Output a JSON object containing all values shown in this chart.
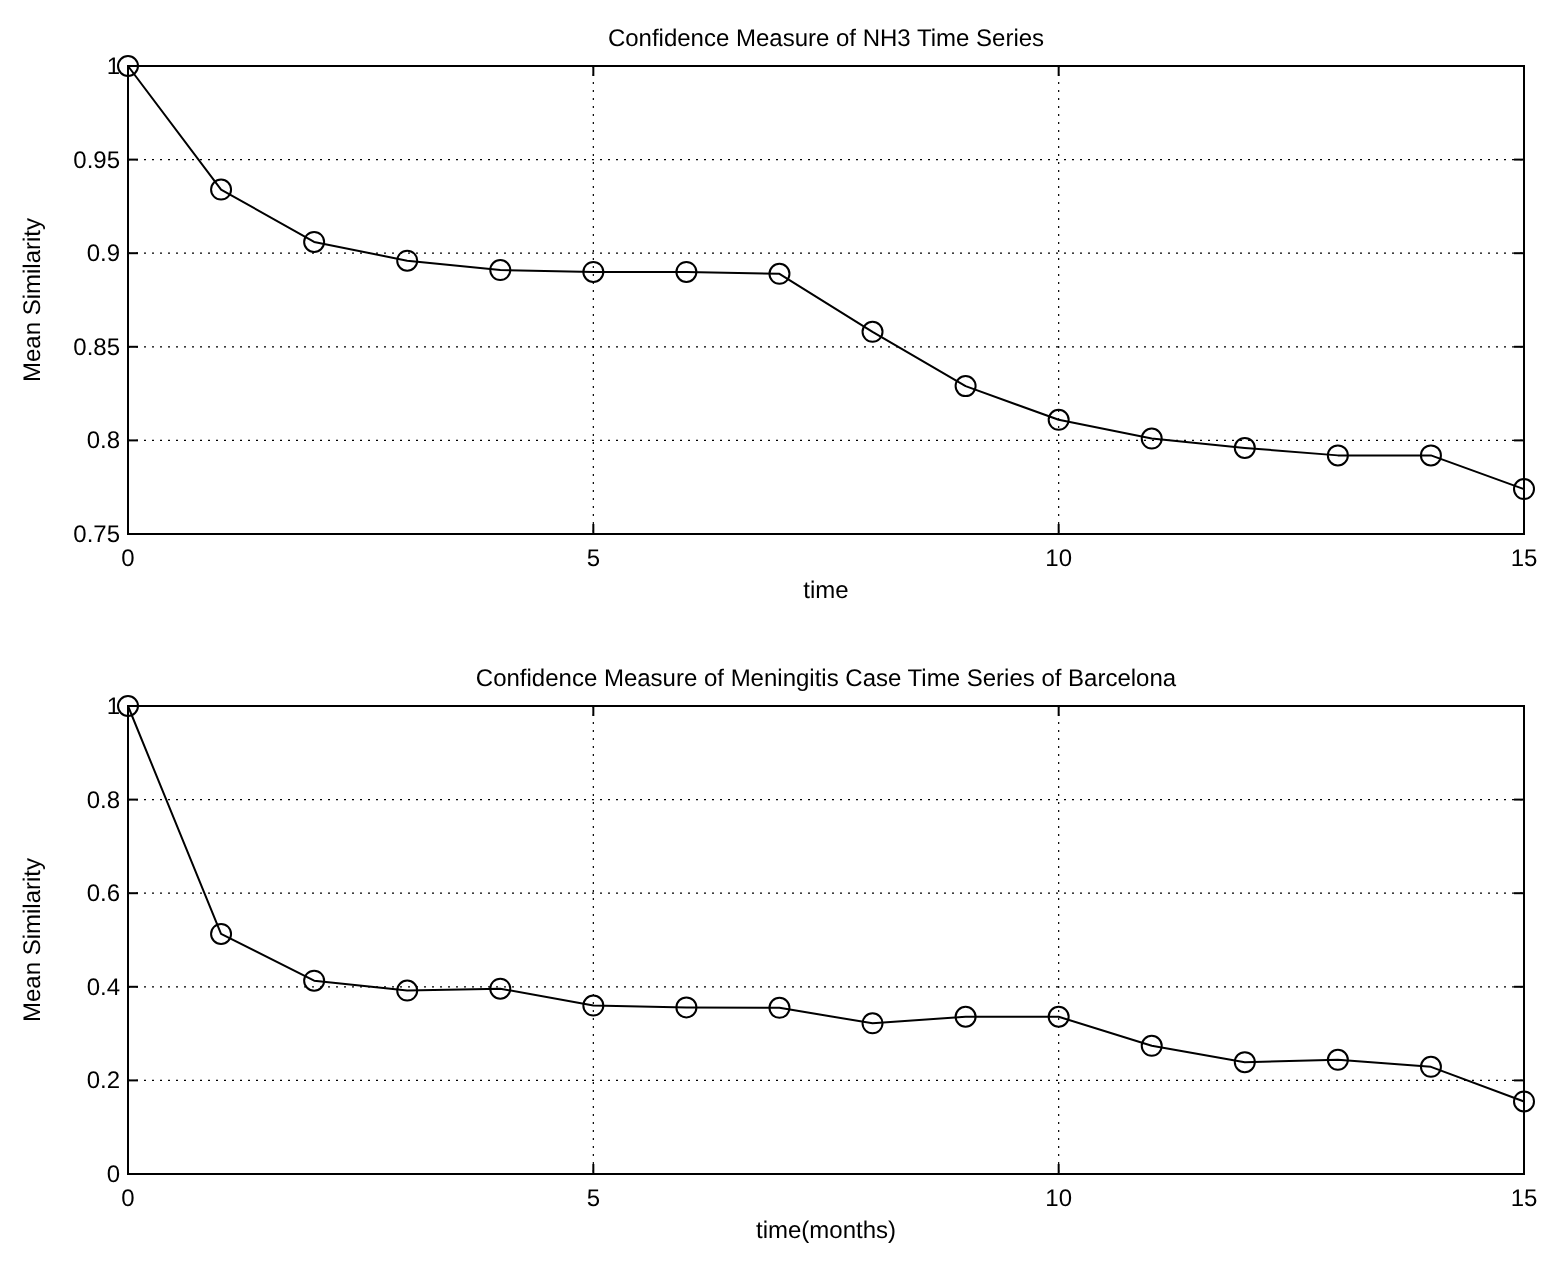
{
  "chart_data": [
    {
      "type": "line",
      "title": "Confidence Measure of NH3 Time Series",
      "xlabel": "time",
      "ylabel": "Mean Similarity",
      "x": [
        0,
        1,
        2,
        3,
        4,
        5,
        6,
        7,
        8,
        9,
        10,
        11,
        12,
        13,
        14,
        15
      ],
      "series": [
        {
          "color": "#000000",
          "values": [
            1.0,
            0.934,
            0.906,
            0.896,
            0.891,
            0.89,
            0.89,
            0.889,
            0.858,
            0.829,
            0.811,
            0.801,
            0.796,
            0.792,
            0.792,
            0.774
          ]
        }
      ],
      "xlim": [
        0,
        15
      ],
      "xticks": [
        0,
        5,
        10,
        15
      ],
      "ylim": [
        0.75,
        1
      ],
      "yticks": [
        0.75,
        0.8,
        0.85,
        0.9,
        0.95,
        1
      ],
      "grid": true,
      "marker": "circle",
      "line_style": "solid"
    },
    {
      "type": "line",
      "title": "Confidence Measure of Meningitis Case Time Series of Barcelona",
      "xlabel": "time(months)",
      "ylabel": "Mean Similarity",
      "x": [
        0,
        1,
        2,
        3,
        4,
        5,
        6,
        7,
        8,
        9,
        10,
        11,
        12,
        13,
        14,
        15
      ],
      "series": [
        {
          "color": "#000000",
          "values": [
            1.0,
            0.513,
            0.413,
            0.392,
            0.396,
            0.36,
            0.356,
            0.355,
            0.322,
            0.336,
            0.336,
            0.274,
            0.239,
            0.244,
            0.229,
            0.155
          ]
        }
      ],
      "xlim": [
        0,
        15
      ],
      "xticks": [
        0,
        5,
        10,
        15
      ],
      "ylim": [
        0,
        1
      ],
      "yticks": [
        0,
        0.2,
        0.4,
        0.6,
        0.8,
        1
      ],
      "grid": true,
      "marker": "circle",
      "line_style": "solid"
    }
  ]
}
